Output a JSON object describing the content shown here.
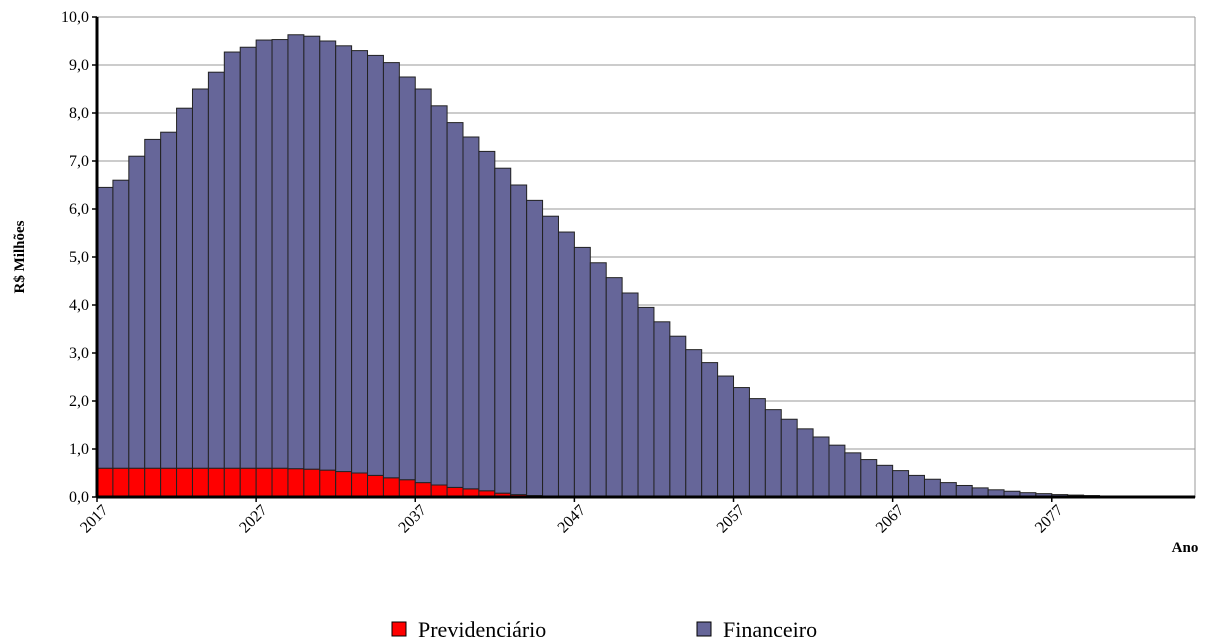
{
  "chart_data": {
    "type": "stacked_bar",
    "y_label": "R$ Milhões",
    "x_label": "Ano",
    "categories": [
      "2017",
      null,
      null,
      null,
      null,
      null,
      null,
      null,
      null,
      null,
      "2027",
      null,
      null,
      null,
      null,
      null,
      null,
      null,
      null,
      null,
      "2037",
      null,
      null,
      null,
      null,
      null,
      null,
      null,
      null,
      null,
      "2047",
      null,
      null,
      null,
      null,
      null,
      null,
      null,
      null,
      null,
      "2057",
      null,
      null,
      null,
      null,
      null,
      null,
      null,
      null,
      null,
      "2067",
      null,
      null,
      null,
      null,
      null,
      null,
      null,
      null,
      null,
      "2077",
      null,
      null,
      null,
      null,
      null,
      null,
      null,
      null
    ],
    "series": [
      {
        "name": "Previdenciário",
        "color": "#ff0000",
        "values": [
          0.6,
          0.6,
          0.6,
          0.6,
          0.6,
          0.6,
          0.6,
          0.6,
          0.6,
          0.6,
          0.6,
          0.6,
          0.59,
          0.58,
          0.56,
          0.53,
          0.5,
          0.45,
          0.4,
          0.36,
          0.3,
          0.25,
          0.2,
          0.17,
          0.13,
          0.08,
          0.05,
          0.03,
          0.02,
          0.01,
          0,
          0,
          0,
          0,
          0,
          0,
          0,
          0,
          0,
          0,
          0,
          0,
          0,
          0,
          0,
          0,
          0,
          0,
          0,
          0,
          0,
          0,
          0,
          0,
          0,
          0,
          0,
          0,
          0,
          0,
          0,
          0,
          0,
          0,
          0,
          0,
          0,
          0,
          0
        ]
      },
      {
        "name": "Financeiro",
        "color": "#666699",
        "values": [
          5.85,
          6.0,
          6.5,
          6.85,
          7.0,
          7.5,
          7.9,
          8.25,
          8.67,
          8.77,
          8.92,
          8.93,
          9.04,
          9.02,
          8.94,
          8.87,
          8.8,
          8.75,
          8.65,
          8.39,
          8.2,
          7.9,
          7.6,
          7.33,
          7.07,
          6.77,
          6.45,
          6.15,
          5.83,
          5.51,
          5.2,
          4.88,
          4.57,
          4.25,
          3.95,
          3.65,
          3.35,
          3.07,
          2.8,
          2.52,
          2.28,
          2.05,
          1.82,
          1.62,
          1.42,
          1.25,
          1.08,
          0.92,
          0.78,
          0.66,
          0.55,
          0.45,
          0.37,
          0.3,
          0.24,
          0.19,
          0.15,
          0.12,
          0.09,
          0.07,
          0.05,
          0.04,
          0.03,
          0.02,
          0.015,
          0.01,
          0.008,
          0.005,
          0.003
        ]
      }
    ],
    "ylim": [
      0,
      10
    ],
    "yticks": [
      {
        "value": 0,
        "label": "0,0"
      },
      {
        "value": 1,
        "label": "1,0"
      },
      {
        "value": 2,
        "label": "2,0"
      },
      {
        "value": 3,
        "label": "3,0"
      },
      {
        "value": 4,
        "label": "4,0"
      },
      {
        "value": 5,
        "label": "5,0"
      },
      {
        "value": 6,
        "label": "6,0"
      },
      {
        "value": 7,
        "label": "7,0"
      },
      {
        "value": 8,
        "label": "8,0"
      },
      {
        "value": 9,
        "label": "9,0"
      },
      {
        "value": 10,
        "label": "10,0"
      }
    ],
    "grid": true,
    "legend": "bottom"
  }
}
